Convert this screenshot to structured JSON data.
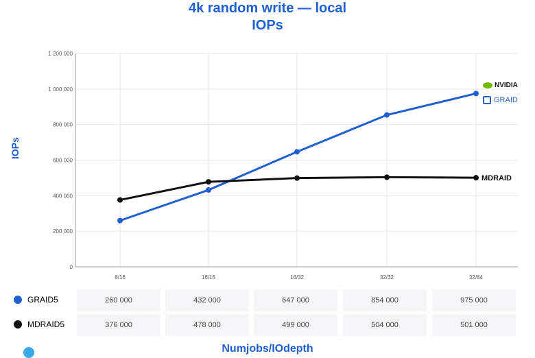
{
  "title_line1": "4k random write — local",
  "title_line2": "IOPs",
  "colors": {
    "graid": "#1f5fd0",
    "mdraid": "#111111",
    "accent": "#1f5fd0"
  },
  "brand": {
    "nvidia": "NVIDIA",
    "graid": "GRAID"
  },
  "chart_data": {
    "type": "line",
    "title": "4k random write — local IOPs",
    "xlabel": "Numjobs/IOdepth",
    "ylabel": "IOPs",
    "categories": [
      "8/16",
      "16/16",
      "16/32",
      "32/32",
      "32/64"
    ],
    "yticks": [
      "0",
      "200 000",
      "400 000",
      "600 000",
      "800 000",
      "1 000 000",
      "1 200 000"
    ],
    "ylim": [
      0,
      1200000
    ],
    "grid": true,
    "series": [
      {
        "name": "GRAID5",
        "values": [
          260000,
          432000,
          647000,
          854000,
          975000
        ]
      },
      {
        "name": "MDRAID5",
        "values": [
          376000,
          478000,
          499000,
          504000,
          501000
        ]
      }
    ],
    "annotations": [
      "MDRAID"
    ]
  },
  "table": {
    "rows": [
      {
        "label": "GRAID5",
        "cells": [
          "260 000",
          "432 000",
          "647 000",
          "854 000",
          "975 000"
        ]
      },
      {
        "label": "MDRAID5",
        "cells": [
          "376 000",
          "478 000",
          "499 000",
          "504 000",
          "501 000"
        ]
      }
    ]
  }
}
